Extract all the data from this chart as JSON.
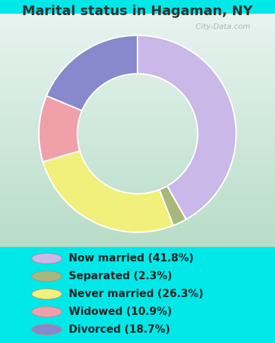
{
  "title": "Marital status in Hagaman, NY",
  "slices": [
    41.8,
    2.3,
    26.3,
    10.9,
    18.7
  ],
  "labels": [
    "Now married (41.8%)",
    "Separated (2.3%)",
    "Never married (26.3%)",
    "Widowed (10.9%)",
    "Divorced (18.7%)"
  ],
  "colors": [
    "#c9b8e8",
    "#a8b87a",
    "#f0f07a",
    "#f0a0a8",
    "#8888cc"
  ],
  "background_color": "#00e8e8",
  "title_color": "#333333",
  "title_fontsize": 14,
  "legend_fontsize": 11,
  "watermark": "   City-Data.com",
  "chart_bg_left": "#b8ddc8",
  "chart_bg_right": "#e8f4f0"
}
